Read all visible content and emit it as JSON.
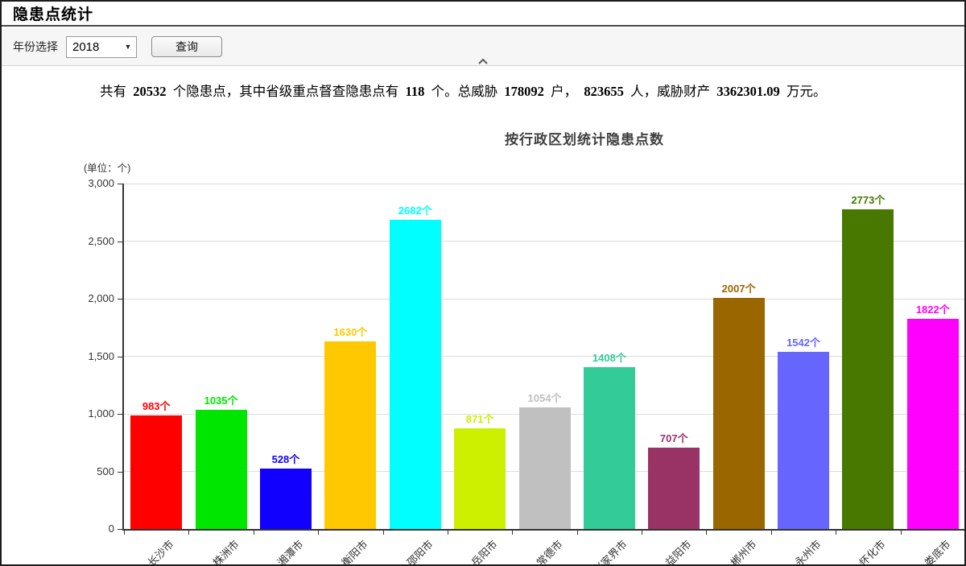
{
  "window": {
    "title": "隐患点统计"
  },
  "toolbar": {
    "year_label": "年份选择",
    "year_value": "2018",
    "dropdown_arrow": "▼",
    "query_button": "查询",
    "collapse_icon": "chevron-up"
  },
  "summary_parts": [
    {
      "t": "共有  ",
      "b": false
    },
    {
      "t": "20532",
      "b": true
    },
    {
      "t": "  个隐患点，其中省级重点督查隐患点有  ",
      "b": false
    },
    {
      "t": "118",
      "b": true
    },
    {
      "t": "  个。总威胁  ",
      "b": false
    },
    {
      "t": "178092",
      "b": true
    },
    {
      "t": "  户，  ",
      "b": false
    },
    {
      "t": "823655",
      "b": true
    },
    {
      "t": "  人，威胁财产  ",
      "b": false
    },
    {
      "t": "3362301.09",
      "b": true
    },
    {
      "t": "  万元。",
      "b": false
    }
  ],
  "chart_data": {
    "type": "bar",
    "title": "按行政区划统计隐患点数",
    "unit_label": "(单位：个)",
    "categories": [
      "长沙市",
      "株洲市",
      "湘潭市",
      "衡阳市",
      "邵阳市",
      "岳阳市",
      "常德市",
      "张家界市",
      "益阳市",
      "郴州市",
      "永州市",
      "怀化市",
      "娄底市"
    ],
    "values": [
      983,
      1035,
      528,
      1630,
      2682,
      871,
      1054,
      1408,
      707,
      2007,
      1542,
      2773,
      1822
    ],
    "bar_colors": [
      "#ff0000",
      "#00e600",
      "#1200ff",
      "#ffc800",
      "#00ffff",
      "#ccf000",
      "#c0c0c0",
      "#33cc99",
      "#993366",
      "#996600",
      "#6666ff",
      "#487800",
      "#ff00ff"
    ],
    "value_label_suffix": "个",
    "xlabel": "",
    "ylabel": "",
    "ylim": [
      0,
      3000
    ],
    "ytick_interval": 500,
    "ytick_labels": [
      "0",
      "500",
      "1,000",
      "1,500",
      "2,000",
      "2,500",
      "3,000"
    ],
    "grid": true,
    "legend": "none"
  }
}
